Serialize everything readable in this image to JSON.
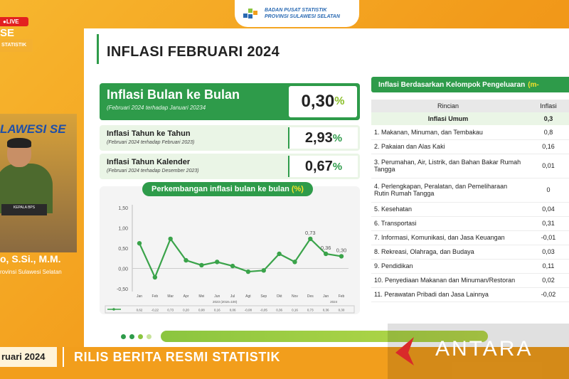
{
  "header": {
    "line1": "BADAN PUSAT STATISTIK",
    "line2": "PROVINSI SULAWESI SELATAN"
  },
  "stream": {
    "live_label": "LIVE",
    "left_fragment": "SE",
    "left_tag": "STATISTIK"
  },
  "slide": {
    "title": "INFLASI FEBRUARI 2024",
    "mtm": {
      "title": "Inflasi Bulan ke Bulan",
      "subtitle": "(Februari 2024 terhadap Januari 20234",
      "value": "0,30",
      "pct": "%"
    },
    "yoy": {
      "title": "Inflasi Tahun ke Tahun",
      "subtitle": "(Februari 2024 terhadap Februari 2023)",
      "value": "2,93",
      "pct": "%"
    },
    "ytd": {
      "title": "Inflasi Tahun Kalender",
      "subtitle": "(Februari 2024 terhadap Desember 2023)",
      "value": "0,67",
      "pct": "%"
    },
    "chart_title": "Perkembangan inflasi bulan ke bulan",
    "chart_unit": "(%)",
    "table_title": "Inflasi Berdasarkan Kelompok Pengeluaran",
    "table_unit": "(m-",
    "table_headers": [
      "Rincian",
      "Inflasi"
    ],
    "table_total": {
      "label": "Inflasi Umum",
      "value": "0,3"
    },
    "table_rows": [
      {
        "label": "1.  Makanan, Minuman, dan Tembakau",
        "value": "0,8"
      },
      {
        "label": "2.  Pakaian dan Alas Kaki",
        "value": "0,16"
      },
      {
        "label": "3.  Perumahan, Air, Listrik, dan Bahan Bakar Rumah Tangga",
        "value": "0,01"
      },
      {
        "label": "4.  Perlengkapan, Peralatan, dan Pemeliharaan Rutin Rumah Tangga",
        "value": "0"
      },
      {
        "label": "5.  Kesehatan",
        "value": "0,04"
      },
      {
        "label": "6.  Transportasi",
        "value": "0,31"
      },
      {
        "label": "7.  Informasi, Komunikasi, dan Jasa Keuangan",
        "value": "-0,01"
      },
      {
        "label": "8.  Rekreasi, Olahraga, dan Budaya",
        "value": "0,03"
      },
      {
        "label": "9.  Pendidikan",
        "value": "0,11"
      },
      {
        "label": "10. Penyediaan Makanan dan Minuman/Restoran",
        "value": "0,02"
      },
      {
        "label": "11. Perawatan Pribadi dan Jasa Lainnya",
        "value": "-0,02"
      }
    ]
  },
  "chart_data": {
    "type": "line",
    "title": "Perkembangan inflasi bulan ke bulan (%)",
    "categories": [
      "Jan",
      "Feb",
      "Mar",
      "Apr",
      "Mei",
      "Jun",
      "Jul",
      "Agt",
      "Sep",
      "Okt",
      "Nov",
      "Des",
      "Jan",
      "Feb"
    ],
    "group_labels": [
      "2023 (2018=100)",
      "2024"
    ],
    "series": [
      {
        "values": [
          0.62,
          -0.22,
          0.73,
          0.2,
          0.08,
          0.16,
          0.06,
          -0.08,
          -0.05,
          0.36,
          0.16,
          0.73,
          0.36,
          0.3
        ]
      }
    ],
    "value_labels": [
      "0,62",
      "-0,22",
      "0,73",
      "0,20",
      "0,08",
      "0,16",
      "0,06",
      "-0,08",
      "-0,05",
      "0,36",
      "0,16",
      "0,73",
      "0,36",
      "0,30"
    ],
    "point_labels": [
      {
        "index": 11,
        "text": "0,73"
      },
      {
        "index": 12,
        "text": "0,36"
      },
      {
        "index": 13,
        "text": "0,30"
      }
    ],
    "yticks": [
      "1,50",
      "1,00",
      "0,50",
      "0,00",
      "-0,50"
    ],
    "ylim": [
      -0.5,
      1.5
    ],
    "grid": false,
    "line_color": "#3aa34a"
  },
  "presenter": {
    "podium": "KEPALA BPS",
    "name": "o, S.Si., M.M.",
    "role": "rovinsi Sulawesi Selatan",
    "banner": "LAWESI SE"
  },
  "ticker": {
    "left": "ruari 2024",
    "text": "RILIS BERITA RESMI STATISTIK"
  },
  "watermark": {
    "text": "ANTARA"
  }
}
